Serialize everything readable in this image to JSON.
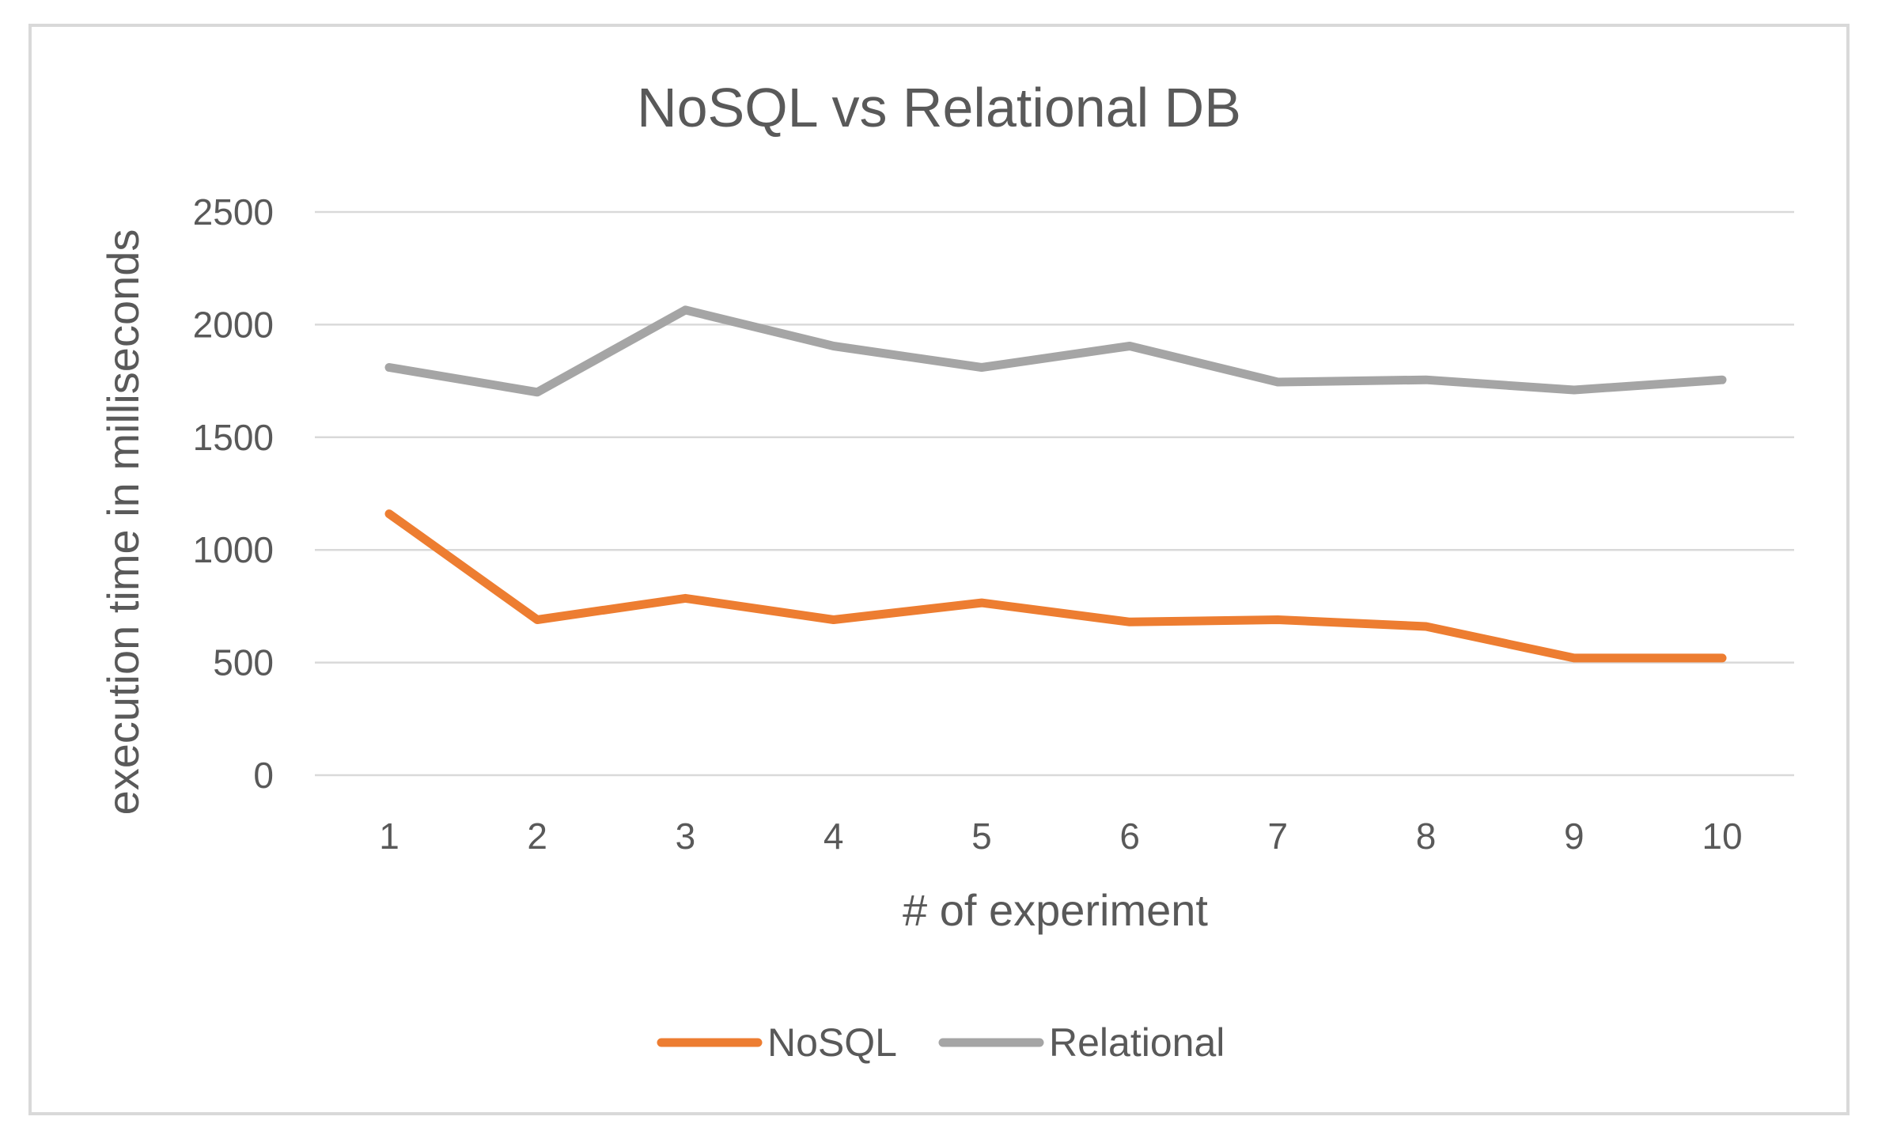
{
  "chart_data": {
    "type": "line",
    "title": "NoSQL vs Relational DB",
    "xlabel": "# of experiment",
    "ylabel": "execution time in milliseconds",
    "categories": [
      "1",
      "2",
      "3",
      "4",
      "5",
      "6",
      "7",
      "8",
      "9",
      "10"
    ],
    "ylim": [
      0,
      2500
    ],
    "yticks": [
      0,
      500,
      1000,
      1500,
      2000,
      2500
    ],
    "grid": true,
    "legend_position": "bottom",
    "series": [
      {
        "name": "NoSQL",
        "color": "#ed7d31",
        "values": [
          1160,
          690,
          785,
          690,
          765,
          680,
          690,
          660,
          520,
          520
        ]
      },
      {
        "name": "Relational",
        "color": "#a5a5a5",
        "values": [
          1810,
          1700,
          2065,
          1905,
          1810,
          1905,
          1745,
          1755,
          1710,
          1755
        ]
      }
    ]
  }
}
